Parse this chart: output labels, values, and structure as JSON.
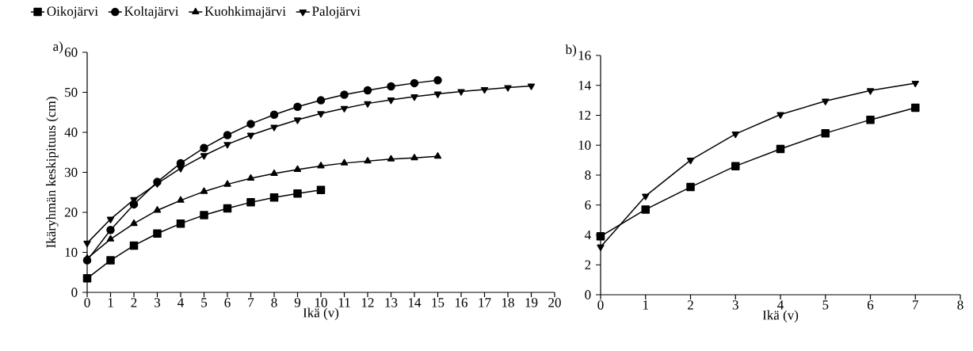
{
  "chart_data": [
    {
      "type": "line",
      "title": "a)",
      "xlabel": "Ikä (v)",
      "ylabel": "Ikäryhmän keskipituus (cm)",
      "xlim": [
        0,
        20
      ],
      "ylim": [
        0,
        60
      ],
      "xticks": [
        0,
        1,
        2,
        3,
        4,
        5,
        6,
        7,
        8,
        9,
        10,
        11,
        12,
        13,
        14,
        15,
        16,
        17,
        18,
        19,
        20
      ],
      "yticks": [
        0,
        10,
        20,
        30,
        40,
        50,
        60
      ],
      "legend": "top",
      "grid": false,
      "line_style": "solid",
      "series": [
        {
          "name": "Oikojärvi",
          "color": "#000000",
          "marker": "square",
          "x": [
            0,
            1,
            2,
            3,
            4,
            5,
            6,
            7,
            8,
            9,
            10
          ],
          "values": [
            3.5,
            8,
            11.7,
            14.7,
            17.2,
            19.3,
            21,
            22.5,
            23.7,
            24.7,
            25.6
          ]
        },
        {
          "name": "Koltajärvi",
          "color": "#000000",
          "marker": "circle",
          "x": [
            0,
            1,
            2,
            3,
            4,
            5,
            6,
            7,
            8,
            9,
            10,
            11,
            12,
            13,
            14,
            15
          ],
          "values": [
            8,
            15.6,
            22,
            27.6,
            32.3,
            36.1,
            39.3,
            42.1,
            44.4,
            46.4,
            48,
            49.4,
            50.5,
            51.5,
            52.3,
            53
          ]
        },
        {
          "name": "Kuohkimajärvi",
          "color": "#000000",
          "marker": "triangle",
          "x": [
            0,
            1,
            2,
            3,
            4,
            5,
            6,
            7,
            8,
            9,
            10,
            11,
            12,
            13,
            14,
            15
          ],
          "values": [
            8.5,
            13.3,
            17.2,
            20.5,
            23,
            25.2,
            27,
            28.5,
            29.7,
            30.7,
            31.6,
            32.3,
            32.8,
            33.3,
            33.6,
            34
          ]
        },
        {
          "name": "Palojärvi",
          "color": "#000000",
          "marker": "triangle-down",
          "x": [
            0,
            1,
            2,
            3,
            4,
            5,
            6,
            7,
            8,
            9,
            10,
            11,
            12,
            13,
            14,
            15,
            16,
            17,
            18,
            19
          ],
          "values": [
            12.3,
            18.3,
            23.2,
            27.2,
            31,
            34.2,
            37,
            39.3,
            41.3,
            43.1,
            44.7,
            46,
            47.2,
            48.1,
            48.9,
            49.6,
            50.2,
            50.7,
            51.2,
            51.6
          ]
        }
      ]
    },
    {
      "type": "line",
      "title": "b)",
      "xlabel": "Ikä (v)",
      "xlim": [
        0,
        8
      ],
      "ylim": [
        0,
        16
      ],
      "xticks": [
        0,
        1,
        2,
        3,
        4,
        5,
        6,
        7,
        8
      ],
      "yticks": [
        0,
        2,
        4,
        6,
        8,
        10,
        12,
        14,
        16
      ],
      "grid": false,
      "line_style": "solid",
      "series": [
        {
          "color": "#000000",
          "marker": "square",
          "x": [
            0,
            1,
            2,
            3,
            4,
            5,
            6,
            7
          ],
          "values": [
            3.9,
            5.7,
            7.2,
            8.6,
            9.75,
            10.8,
            11.7,
            12.5
          ]
        },
        {
          "color": "#000000",
          "marker": "triangle-down",
          "x": [
            0,
            1,
            2,
            3,
            4,
            5,
            6,
            7
          ],
          "values": [
            3.2,
            6.6,
            9.0,
            10.75,
            12.05,
            12.95,
            13.65,
            14.15
          ]
        }
      ]
    }
  ]
}
